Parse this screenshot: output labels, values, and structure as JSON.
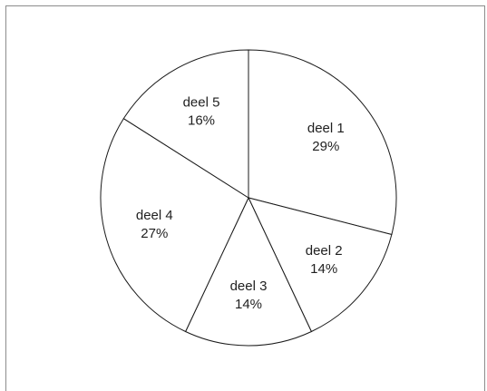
{
  "chart_data": {
    "type": "pie",
    "title": "",
    "slices": [
      {
        "label": "deel 1",
        "value": 29,
        "value_label": "29%"
      },
      {
        "label": "deel 2",
        "value": 14,
        "value_label": "14%"
      },
      {
        "label": "deel 3",
        "value": 14,
        "value_label": "14%"
      },
      {
        "label": "deel 4",
        "value": 27,
        "value_label": "27%"
      },
      {
        "label": "deel 5",
        "value": 16,
        "value_label": "16%"
      }
    ],
    "start_angle": "12 o'clock",
    "direction": "clockwise",
    "legend": "none",
    "colors": {
      "fill": "#ffffff",
      "stroke": "#1a1a1a",
      "text": "#1f1f1f",
      "frame": "#8c8c8c"
    }
  }
}
